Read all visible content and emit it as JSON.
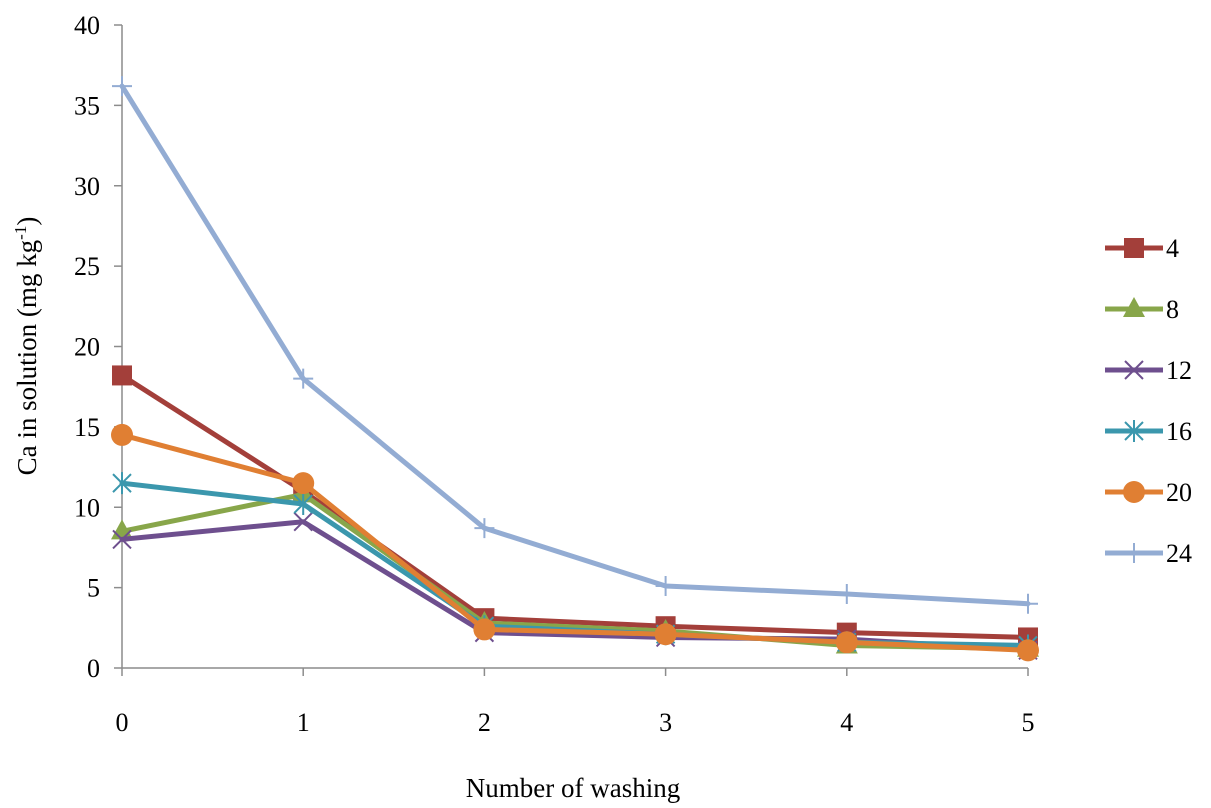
{
  "chart_data": {
    "type": "line",
    "xlabel": "Number of washing",
    "ylabel": "Ca in solution (mg kg",
    "ylabel_sup": "-1",
    "ylabel_close": ")",
    "x": [
      0,
      1,
      2,
      3,
      4,
      5
    ],
    "x_tick_labels": [
      "0",
      "1",
      "2",
      "3",
      "4",
      "5"
    ],
    "ylim": [
      0,
      40
    ],
    "y_ticks": [
      0,
      5,
      10,
      15,
      20,
      25,
      30,
      35,
      40
    ],
    "y_tick_labels": [
      "0",
      "5",
      "10",
      "15",
      "20",
      "25",
      "30",
      "35",
      "40"
    ],
    "grid": false,
    "legend_position": "right",
    "series": [
      {
        "name": "4",
        "color": "#a33f3a",
        "marker": "square",
        "values": [
          18.2,
          11.0,
          3.1,
          2.6,
          2.2,
          1.9
        ]
      },
      {
        "name": "8",
        "color": "#88a64a",
        "marker": "triangle",
        "values": [
          8.5,
          10.8,
          2.8,
          2.3,
          1.4,
          1.2
        ]
      },
      {
        "name": "12",
        "color": "#6e4f8e",
        "marker": "x",
        "values": [
          8.0,
          9.1,
          2.2,
          1.9,
          1.8,
          1.1
        ]
      },
      {
        "name": "16",
        "color": "#3b97ad",
        "marker": "asterisk",
        "values": [
          11.5,
          10.2,
          2.6,
          2.1,
          1.6,
          1.4
        ]
      },
      {
        "name": "20",
        "color": "#e07f33",
        "marker": "circle",
        "values": [
          14.5,
          11.5,
          2.4,
          2.1,
          1.6,
          1.1
        ]
      },
      {
        "name": "24",
        "color": "#93acd3",
        "marker": "plus",
        "values": [
          36.2,
          18.0,
          8.7,
          5.1,
          4.6,
          4.0
        ]
      }
    ]
  }
}
